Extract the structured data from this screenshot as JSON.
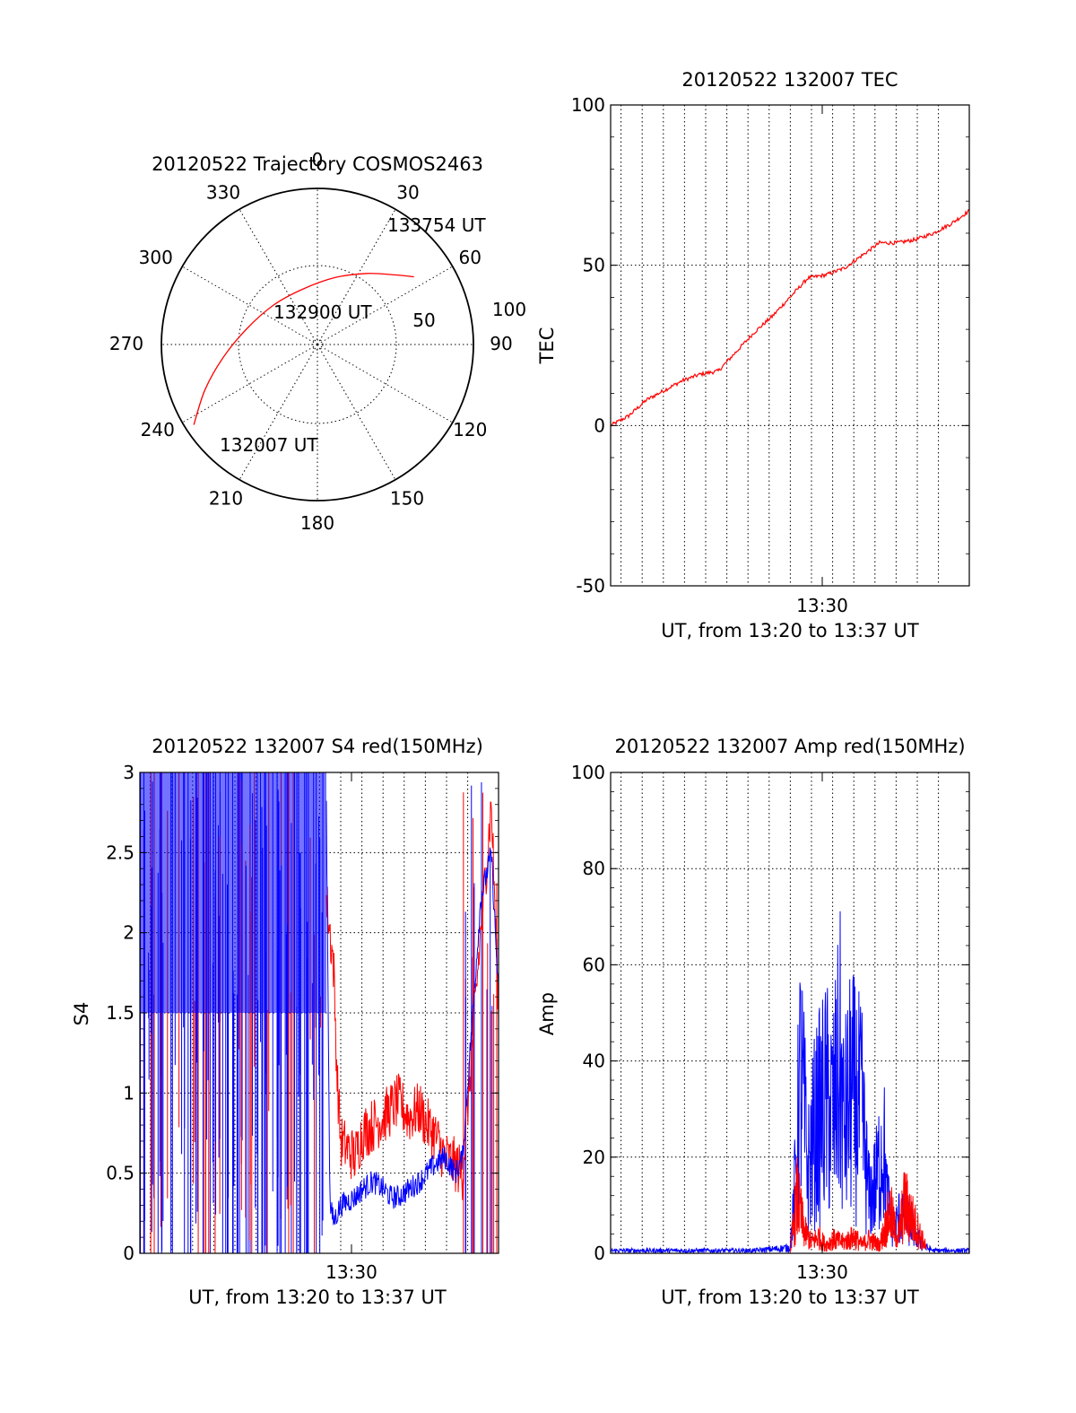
{
  "chart_data": [
    {
      "type": "polar",
      "title": "20120522 Trajectory COSMOS2463",
      "azimuth_labels": [
        "0",
        "30",
        "60",
        "90",
        "120",
        "150",
        "180",
        "210",
        "240",
        "270",
        "300",
        "330"
      ],
      "radial_labels": [
        "50",
        "100"
      ],
      "time_labels": [
        "133754 UT",
        "132900 UT",
        "132007 UT"
      ],
      "track": {
        "color": "#ff0000",
        "points_az_el": [
          [
            237,
            5
          ],
          [
            248,
            20
          ],
          [
            262,
            35
          ],
          [
            282,
            48
          ],
          [
            312,
            56
          ],
          [
            345,
            57
          ],
          [
            15,
            50
          ],
          [
            35,
            40
          ],
          [
            48,
            30
          ],
          [
            55,
            22
          ]
        ]
      }
    },
    {
      "type": "line",
      "title": "20120522 132007 TEC",
      "ylabel": "TEC",
      "xlabel": "UT, from 13:20 to 13:37 UT",
      "x_tick_labels": [
        "13:30"
      ],
      "y_tick_labels": [
        "-50",
        "0",
        "50",
        "100"
      ],
      "ylim": [
        -50,
        100
      ],
      "grid": true,
      "series": [
        {
          "color": "#ff0000",
          "x": [
            0,
            0.05,
            0.1,
            0.15,
            0.2,
            0.25,
            0.3,
            0.35,
            0.4,
            0.45,
            0.5,
            0.55,
            0.6,
            0.65,
            0.7,
            0.75,
            0.8,
            0.85,
            0.9,
            0.95,
            1.0
          ],
          "values": [
            0,
            3,
            8,
            11,
            14,
            16,
            17,
            23,
            29,
            34,
            40,
            46,
            47,
            49,
            53,
            57,
            57,
            58,
            60,
            63,
            67
          ]
        }
      ]
    },
    {
      "type": "line",
      "title": "20120522 132007 S4 red(150MHz)",
      "ylabel": "S4",
      "xlabel": "UT, from 13:20 to 13:37 UT",
      "x_tick_labels": [
        "13:30"
      ],
      "y_tick_labels": [
        "0",
        "0.5",
        "1",
        "1.5",
        "2",
        "2.5",
        "3"
      ],
      "ylim": [
        0,
        3
      ],
      "grid": true,
      "series": [
        {
          "color": "#ff0000",
          "x": [
            0.52,
            0.54,
            0.55,
            0.56,
            0.6,
            0.62,
            0.65,
            0.68,
            0.7,
            0.72,
            0.75,
            0.78,
            0.8,
            0.82,
            0.85,
            0.88,
            0.9,
            0.95,
            0.98,
            1.0
          ],
          "values": [
            2.2,
            1.8,
            1.1,
            0.7,
            0.6,
            0.75,
            0.8,
            0.85,
            0.9,
            0.95,
            0.85,
            0.9,
            0.8,
            0.75,
            0.6,
            0.55,
            0.5,
            2.0,
            2.8,
            1.5
          ]
        },
        {
          "color": "#0000ff",
          "x": [
            0.52,
            0.53,
            0.54,
            0.56,
            0.6,
            0.62,
            0.65,
            0.68,
            0.7,
            0.72,
            0.75,
            0.78,
            0.8,
            0.82,
            0.85,
            0.88,
            0.9,
            0.95,
            0.98,
            1.0
          ],
          "values": [
            2.8,
            0.3,
            0.2,
            0.3,
            0.35,
            0.4,
            0.45,
            0.4,
            0.35,
            0.35,
            0.4,
            0.45,
            0.5,
            0.55,
            0.6,
            0.5,
            0.6,
            2.2,
            2.5,
            1.6
          ]
        }
      ]
    },
    {
      "type": "line",
      "title": "20120522 132007 Amp red(150MHz)",
      "ylabel": "Amp",
      "xlabel": "UT, from 13:20 to 13:37 UT",
      "x_tick_labels": [
        "13:30"
      ],
      "y_tick_labels": [
        "0",
        "20",
        "40",
        "60",
        "80",
        "100"
      ],
      "ylim": [
        0,
        100
      ],
      "grid": true,
      "series": [
        {
          "color": "#0000ff",
          "x": [
            0,
            0.1,
            0.2,
            0.3,
            0.4,
            0.5,
            0.51,
            0.53,
            0.55,
            0.57,
            0.6,
            0.62,
            0.64,
            0.65,
            0.67,
            0.7,
            0.72,
            0.74,
            0.76,
            0.77,
            0.79,
            0.81,
            0.84,
            0.86,
            0.88,
            0.9,
            0.95,
            1.0
          ],
          "values": [
            1,
            1,
            1,
            1,
            1,
            2,
            15,
            66,
            30,
            45,
            55,
            50,
            68,
            45,
            58,
            50,
            20,
            25,
            42,
            20,
            8,
            15,
            10,
            5,
            2,
            1,
            1,
            1
          ]
        },
        {
          "color": "#ff0000",
          "x": [
            0.5,
            0.52,
            0.54,
            0.56,
            0.58,
            0.6,
            0.62,
            0.65,
            0.68,
            0.7,
            0.72,
            0.75,
            0.78,
            0.8,
            0.82,
            0.85,
            0.88
          ],
          "values": [
            0,
            20,
            8,
            4,
            6,
            3,
            5,
            4,
            6,
            3,
            5,
            3,
            15,
            5,
            18,
            10,
            2
          ]
        }
      ]
    }
  ]
}
